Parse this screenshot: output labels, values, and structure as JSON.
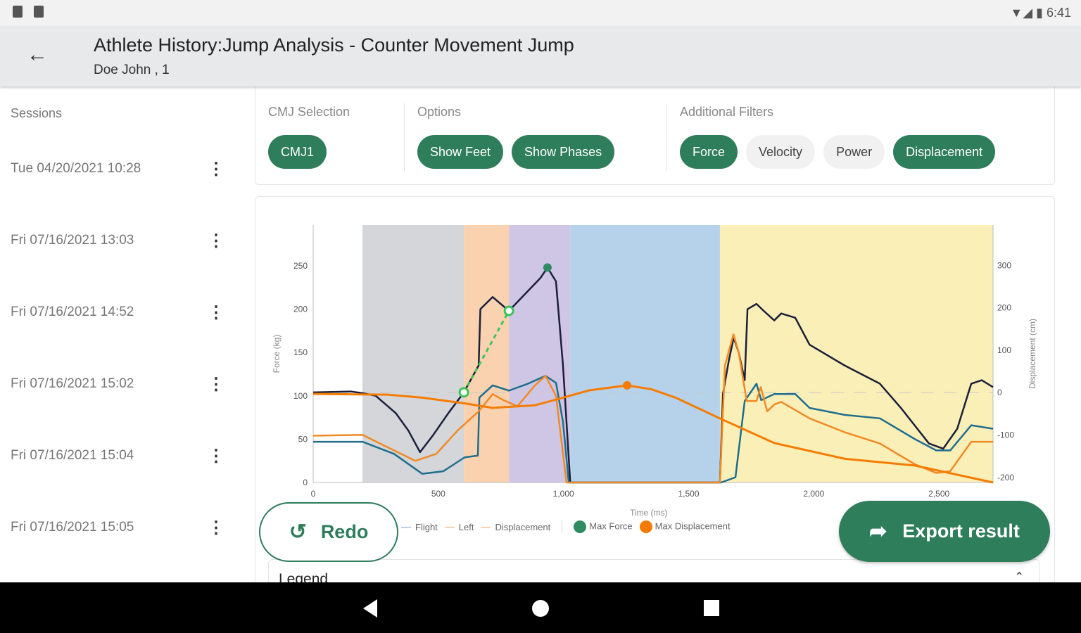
{
  "status_bar": {
    "time": "6:41"
  },
  "header": {
    "title": "Athlete History:Jump Analysis - Counter Movement Jump",
    "subtitle": "Doe John , 1"
  },
  "sidebar": {
    "heading": "Sessions",
    "sessions": [
      "Tue 04/20/2021 10:28",
      "Fri 07/16/2021 13:03",
      "Fri 07/16/2021 14:52",
      "Fri 07/16/2021 15:02",
      "Fri 07/16/2021 15:04",
      "Fri 07/16/2021 15:05"
    ]
  },
  "filters": {
    "cmj_label": "CMJ Selection",
    "cmj": [
      {
        "label": "CMJ1",
        "on": true
      }
    ],
    "options_label": "Options",
    "options": [
      {
        "label": "Show Feet",
        "on": true
      },
      {
        "label": "Show Phases",
        "on": true
      }
    ],
    "additional_label": "Additional Filters",
    "additional": [
      {
        "label": "Force",
        "on": true
      },
      {
        "label": "Velocity",
        "on": false
      },
      {
        "label": "Power",
        "on": false
      },
      {
        "label": "Displacement",
        "on": true
      }
    ]
  },
  "buttons": {
    "redo": "Redo",
    "export": "Export result"
  },
  "legend_card": {
    "title": "Legend"
  },
  "colors": {
    "accent": "#2e7d5b",
    "total": "#1a1f3a",
    "right": "#1f6e8c",
    "left": "#f08a24",
    "displacement": "#f57c00"
  },
  "chart_data": {
    "type": "line",
    "xlabel": "Time (ms)",
    "ylabel": "Force (kg)",
    "y2label": "Displacement (cm)",
    "xlim": [
      0,
      2716
    ],
    "ylim": [
      0,
      297
    ],
    "y2lim": [
      -212,
      395
    ],
    "xticks": [
      0,
      500,
      1000,
      1500,
      2000,
      2500
    ],
    "xtick_labels": [
      "0",
      "500",
      "1,000",
      "1,500",
      "2,000",
      "2,500"
    ],
    "yticks": [
      0,
      50,
      100,
      150,
      200,
      250
    ],
    "y2ticks": [
      -200,
      -100,
      0,
      100,
      200,
      300
    ],
    "phases": [
      {
        "from": 197,
        "to": 602,
        "color": "#d4d6da"
      },
      {
        "from": 602,
        "to": 782,
        "color": "#fbd2b0"
      },
      {
        "from": 782,
        "to": 1027,
        "color": "#cfc6e6"
      },
      {
        "from": 1027,
        "to": 1625,
        "color": "#b6d2ea"
      },
      {
        "from": 1625,
        "to": 2716,
        "color": "#fbefb8"
      }
    ],
    "series": [
      {
        "name": "Total",
        "axis": "left",
        "color": "#1a1f3a",
        "points": [
          [
            0,
            104
          ],
          [
            150,
            105
          ],
          [
            200,
            103
          ],
          [
            250,
            100
          ],
          [
            330,
            80
          ],
          [
            380,
            60
          ],
          [
            427,
            35
          ],
          [
            480,
            55
          ],
          [
            540,
            80
          ],
          [
            602,
            104
          ],
          [
            661,
            135
          ],
          [
            668,
            200
          ],
          [
            717,
            214
          ],
          [
            782,
            198
          ],
          [
            908,
            236
          ],
          [
            936,
            248
          ],
          [
            970,
            232
          ],
          [
            998,
            135
          ],
          [
            1027,
            0
          ],
          [
            1625,
            0
          ],
          [
            1637,
            102
          ],
          [
            1660,
            140
          ],
          [
            1680,
            167
          ],
          [
            1700,
            150
          ],
          [
            1724,
            118
          ],
          [
            1735,
            200
          ],
          [
            1771,
            206
          ],
          [
            1800,
            198
          ],
          [
            1842,
            187
          ],
          [
            1870,
            195
          ],
          [
            1926,
            190
          ],
          [
            1983,
            159
          ],
          [
            2123,
            135
          ],
          [
            2264,
            114
          ],
          [
            2348,
            86
          ],
          [
            2460,
            45
          ],
          [
            2517,
            39
          ],
          [
            2573,
            62
          ],
          [
            2629,
            114
          ],
          [
            2671,
            118
          ],
          [
            2716,
            110
          ]
        ]
      },
      {
        "name": "Right",
        "axis": "left",
        "color": "#1f6e8c",
        "points": [
          [
            0,
            47
          ],
          [
            197,
            47
          ],
          [
            323,
            33
          ],
          [
            436,
            10
          ],
          [
            520,
            13
          ],
          [
            605,
            29
          ],
          [
            658,
            31
          ],
          [
            664,
            98
          ],
          [
            717,
            112
          ],
          [
            782,
            106
          ],
          [
            858,
            114
          ],
          [
            928,
            123
          ],
          [
            970,
            115
          ],
          [
            998,
            70
          ],
          [
            1021,
            0
          ],
          [
            1630,
            0
          ],
          [
            1687,
            6
          ],
          [
            1724,
            94
          ],
          [
            1771,
            114
          ],
          [
            1790,
            95
          ],
          [
            1842,
            102
          ],
          [
            1926,
            102
          ],
          [
            1983,
            86
          ],
          [
            2123,
            78
          ],
          [
            2264,
            74
          ],
          [
            2404,
            50
          ],
          [
            2489,
            37
          ],
          [
            2545,
            37
          ],
          [
            2629,
            66
          ],
          [
            2716,
            62
          ]
        ]
      },
      {
        "name": "Left",
        "axis": "left",
        "color": "#f08a24",
        "points": [
          [
            0,
            54
          ],
          [
            197,
            55
          ],
          [
            323,
            37
          ],
          [
            408,
            25
          ],
          [
            492,
            33
          ],
          [
            577,
            60
          ],
          [
            661,
            82
          ],
          [
            717,
            102
          ],
          [
            760,
            95
          ],
          [
            816,
            88
          ],
          [
            886,
            112
          ],
          [
            928,
            123
          ],
          [
            970,
            100
          ],
          [
            1012,
            0
          ],
          [
            1625,
            0
          ],
          [
            1645,
            135
          ],
          [
            1679,
            171
          ],
          [
            1700,
            150
          ],
          [
            1732,
            94
          ],
          [
            1771,
            94
          ],
          [
            1788,
            110
          ],
          [
            1814,
            82
          ],
          [
            1842,
            90
          ],
          [
            1870,
            93
          ],
          [
            1983,
            74
          ],
          [
            2123,
            58
          ],
          [
            2264,
            45
          ],
          [
            2404,
            21
          ],
          [
            2489,
            11
          ],
          [
            2545,
            13
          ],
          [
            2629,
            47
          ],
          [
            2716,
            47
          ]
        ]
      },
      {
        "name": "Displacement",
        "axis": "right",
        "color": "#f57c00",
        "points": [
          [
            0,
            -3
          ],
          [
            300,
            -5
          ],
          [
            436,
            -12
          ],
          [
            600,
            -25
          ],
          [
            717,
            -36
          ],
          [
            886,
            -30
          ],
          [
            998,
            -12
          ],
          [
            1100,
            5
          ],
          [
            1254,
            17
          ],
          [
            1350,
            8
          ],
          [
            1448,
            -12
          ],
          [
            1625,
            -61
          ],
          [
            1842,
            -119
          ],
          [
            2123,
            -156
          ],
          [
            2404,
            -172
          ],
          [
            2716,
            -212
          ]
        ]
      }
    ],
    "markers": [
      {
        "name": "Max Force",
        "x": 936,
        "y": 248,
        "axis": "left",
        "color": "#2e8b62"
      },
      {
        "name": "Max Displacement",
        "x": 1254,
        "y": 17,
        "axis": "right",
        "color": "#f57c00"
      }
    ],
    "rfd_segment": {
      "from": [
        602,
        104
      ],
      "to": [
        782,
        198
      ],
      "color": "#3cc45a"
    },
    "legend": [
      "Flight",
      "Left",
      "Displacement",
      "Max Force",
      "Max Displacement"
    ]
  }
}
